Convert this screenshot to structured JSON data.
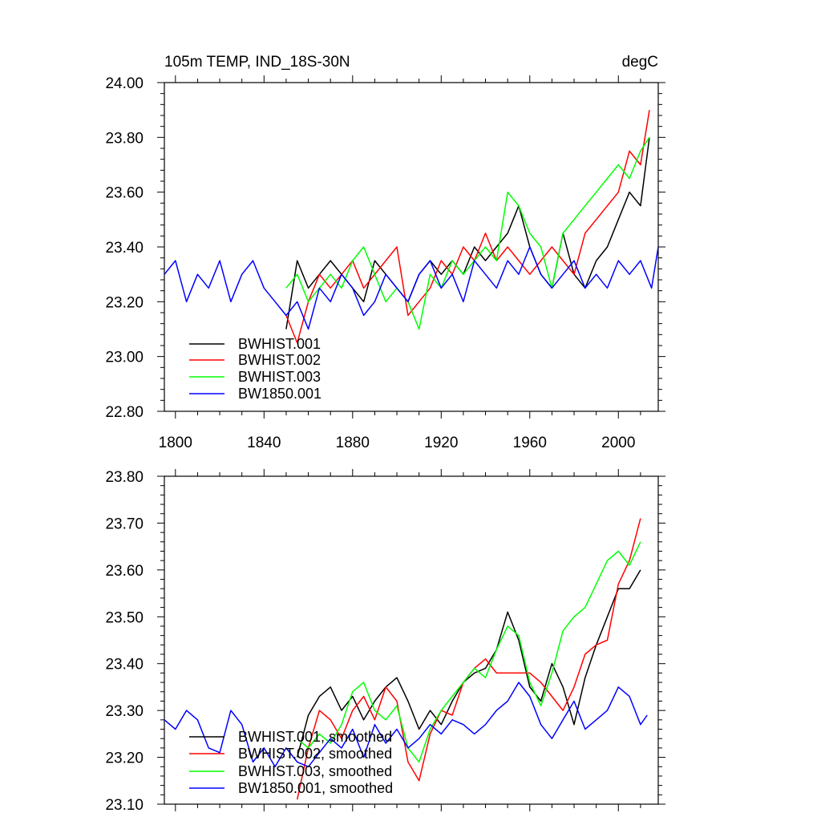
{
  "chart_data": [
    {
      "type": "line",
      "title_left": "105m TEMP, IND_18S-30N",
      "title_right": "degC",
      "xlim": [
        1795,
        2018
      ],
      "ylim": [
        22.8,
        24.0
      ],
      "xticks": [
        1800,
        1840,
        1880,
        1920,
        1960,
        2000
      ],
      "xtick_labels": [
        "1800",
        "1840",
        "1880",
        "1920",
        "1960",
        "2000"
      ],
      "yticks": [
        22.8,
        23.0,
        23.2,
        23.4,
        23.6,
        23.8,
        24.0
      ],
      "ytick_labels": [
        "22.80",
        "23.00",
        "23.20",
        "23.40",
        "23.60",
        "23.80",
        "24.00"
      ],
      "legend_position": "bottom-left",
      "series": [
        {
          "name": "BWHIST.001",
          "color": "#000000",
          "x": [
            1850,
            1855,
            1860,
            1865,
            1870,
            1875,
            1880,
            1885,
            1890,
            1895,
            1900,
            1905,
            1910,
            1915,
            1920,
            1925,
            1930,
            1935,
            1940,
            1945,
            1950,
            1955,
            1960,
            1965,
            1970,
            1975,
            1980,
            1985,
            1990,
            1995,
            2000,
            2005,
            2010,
            2014
          ],
          "y": [
            23.1,
            23.35,
            23.25,
            23.3,
            23.35,
            23.3,
            23.25,
            23.2,
            23.35,
            23.3,
            23.25,
            23.2,
            23.3,
            23.35,
            23.3,
            23.35,
            23.3,
            23.4,
            23.35,
            23.4,
            23.45,
            23.55,
            23.4,
            23.3,
            23.25,
            23.45,
            23.3,
            23.25,
            23.35,
            23.4,
            23.5,
            23.6,
            23.55,
            23.8
          ]
        },
        {
          "name": "BWHIST.002",
          "color": "#ff0000",
          "x": [
            1850,
            1855,
            1860,
            1865,
            1870,
            1875,
            1880,
            1885,
            1890,
            1895,
            1900,
            1905,
            1910,
            1915,
            1920,
            1925,
            1930,
            1935,
            1940,
            1945,
            1950,
            1955,
            1960,
            1965,
            1970,
            1975,
            1980,
            1985,
            1990,
            1995,
            2000,
            2005,
            2010,
            2014
          ],
          "y": [
            23.15,
            23.05,
            23.2,
            23.3,
            23.25,
            23.3,
            23.35,
            23.25,
            23.3,
            23.35,
            23.4,
            23.15,
            23.2,
            23.25,
            23.35,
            23.3,
            23.4,
            23.35,
            23.45,
            23.35,
            23.4,
            23.35,
            23.3,
            23.35,
            23.4,
            23.35,
            23.3,
            23.45,
            23.5,
            23.55,
            23.6,
            23.75,
            23.7,
            23.9
          ]
        },
        {
          "name": "BWHIST.003",
          "color": "#00ff00",
          "x": [
            1850,
            1855,
            1860,
            1865,
            1870,
            1875,
            1880,
            1885,
            1890,
            1895,
            1900,
            1905,
            1910,
            1915,
            1920,
            1925,
            1930,
            1935,
            1940,
            1945,
            1950,
            1955,
            1960,
            1965,
            1970,
            1975,
            1980,
            1985,
            1990,
            1995,
            2000,
            2005,
            2010,
            2014
          ],
          "y": [
            23.25,
            23.3,
            23.2,
            23.25,
            23.3,
            23.25,
            23.35,
            23.4,
            23.3,
            23.2,
            23.25,
            23.2,
            23.1,
            23.3,
            23.25,
            23.35,
            23.3,
            23.35,
            23.4,
            23.35,
            23.6,
            23.55,
            23.45,
            23.4,
            23.25,
            23.45,
            23.5,
            23.55,
            23.6,
            23.65,
            23.7,
            23.65,
            23.75,
            23.8
          ]
        },
        {
          "name": "BW1850.001",
          "color": "#0000ff",
          "x": [
            1795,
            1800,
            1805,
            1810,
            1815,
            1820,
            1825,
            1830,
            1835,
            1840,
            1845,
            1850,
            1855,
            1860,
            1865,
            1870,
            1875,
            1880,
            1885,
            1890,
            1895,
            1900,
            1905,
            1910,
            1915,
            1920,
            1925,
            1930,
            1935,
            1940,
            1945,
            1950,
            1955,
            1960,
            1965,
            1970,
            1975,
            1980,
            1985,
            1990,
            1995,
            2000,
            2005,
            2010,
            2015,
            2018
          ],
          "y": [
            23.3,
            23.35,
            23.2,
            23.3,
            23.25,
            23.35,
            23.2,
            23.3,
            23.35,
            23.25,
            23.2,
            23.15,
            23.2,
            23.1,
            23.25,
            23.2,
            23.3,
            23.25,
            23.15,
            23.2,
            23.3,
            23.25,
            23.2,
            23.3,
            23.35,
            23.25,
            23.3,
            23.2,
            23.35,
            23.3,
            23.25,
            23.35,
            23.3,
            23.4,
            23.3,
            23.25,
            23.3,
            23.35,
            23.25,
            23.3,
            23.25,
            23.35,
            23.3,
            23.35,
            23.25,
            23.4
          ]
        }
      ]
    },
    {
      "type": "line",
      "xlim": [
        1795,
        2018
      ],
      "ylim": [
        23.1,
        23.8
      ],
      "xticks": [
        1800,
        1840,
        1880,
        1920,
        1960,
        2000
      ],
      "yticks": [
        23.1,
        23.2,
        23.3,
        23.4,
        23.5,
        23.6,
        23.7,
        23.8
      ],
      "ytick_labels": [
        "23.10",
        "23.20",
        "23.30",
        "23.40",
        "23.50",
        "23.60",
        "23.70",
        "23.80"
      ],
      "legend_position": "bottom-left",
      "series": [
        {
          "name": "BWHIST.001, smoothed",
          "color": "#000000",
          "x": [
            1855,
            1860,
            1865,
            1870,
            1875,
            1880,
            1885,
            1890,
            1895,
            1900,
            1905,
            1910,
            1915,
            1920,
            1925,
            1930,
            1935,
            1940,
            1945,
            1950,
            1955,
            1960,
            1965,
            1970,
            1975,
            1980,
            1985,
            1990,
            1995,
            2000,
            2005,
            2010
          ],
          "y": [
            23.2,
            23.29,
            23.33,
            23.35,
            23.3,
            23.33,
            23.28,
            23.32,
            23.35,
            23.37,
            23.32,
            23.26,
            23.3,
            23.27,
            23.32,
            23.36,
            23.38,
            23.39,
            23.43,
            23.51,
            23.45,
            23.35,
            23.32,
            23.4,
            23.35,
            23.27,
            23.37,
            23.44,
            23.5,
            23.56,
            23.56,
            23.6
          ]
        },
        {
          "name": "BWHIST.002, smoothed",
          "color": "#ff0000",
          "x": [
            1855,
            1860,
            1865,
            1870,
            1875,
            1880,
            1885,
            1890,
            1895,
            1900,
            1905,
            1910,
            1915,
            1920,
            1925,
            1930,
            1935,
            1940,
            1945,
            1950,
            1955,
            1960,
            1965,
            1970,
            1975,
            1980,
            1985,
            1990,
            1995,
            2000,
            2005,
            2010
          ],
          "y": [
            23.11,
            23.22,
            23.3,
            23.28,
            23.24,
            23.3,
            23.33,
            23.28,
            23.35,
            23.32,
            23.19,
            23.15,
            23.25,
            23.3,
            23.29,
            23.36,
            23.39,
            23.41,
            23.38,
            23.38,
            23.38,
            23.38,
            23.36,
            23.33,
            23.3,
            23.35,
            23.42,
            23.44,
            23.45,
            23.57,
            23.62,
            23.71
          ]
        },
        {
          "name": "BWHIST.003, smoothed",
          "color": "#00ff00",
          "x": [
            1855,
            1860,
            1865,
            1870,
            1875,
            1880,
            1885,
            1890,
            1895,
            1900,
            1905,
            1910,
            1915,
            1920,
            1925,
            1930,
            1935,
            1940,
            1945,
            1950,
            1955,
            1960,
            1965,
            1970,
            1975,
            1980,
            1985,
            1990,
            1995,
            2000,
            2005,
            2010
          ],
          "y": [
            23.24,
            23.22,
            23.25,
            23.23,
            23.27,
            23.34,
            23.36,
            23.3,
            23.28,
            23.31,
            23.22,
            23.19,
            23.26,
            23.3,
            23.33,
            23.36,
            23.39,
            23.37,
            23.43,
            23.48,
            23.46,
            23.36,
            23.31,
            23.38,
            23.47,
            23.5,
            23.52,
            23.57,
            23.62,
            23.64,
            23.61,
            23.66
          ]
        },
        {
          "name": "BW1850.001, smoothed",
          "color": "#0000ff",
          "x": [
            1795,
            1800,
            1805,
            1810,
            1815,
            1820,
            1825,
            1830,
            1835,
            1840,
            1845,
            1850,
            1855,
            1860,
            1865,
            1870,
            1875,
            1880,
            1885,
            1890,
            1895,
            1900,
            1905,
            1910,
            1915,
            1920,
            1925,
            1930,
            1935,
            1940,
            1945,
            1950,
            1955,
            1960,
            1965,
            1970,
            1975,
            1980,
            1985,
            1990,
            1995,
            2000,
            2005,
            2010,
            2013
          ],
          "y": [
            23.28,
            23.26,
            23.3,
            23.28,
            23.22,
            23.21,
            23.3,
            23.27,
            23.19,
            23.22,
            23.18,
            23.22,
            23.19,
            23.18,
            23.21,
            23.24,
            23.22,
            23.26,
            23.2,
            23.27,
            23.23,
            23.26,
            23.22,
            23.24,
            23.27,
            23.25,
            23.28,
            23.27,
            23.25,
            23.27,
            23.3,
            23.32,
            23.36,
            23.33,
            23.27,
            23.24,
            23.28,
            23.32,
            23.26,
            23.28,
            23.3,
            23.35,
            23.33,
            23.27,
            23.29
          ]
        }
      ]
    }
  ]
}
